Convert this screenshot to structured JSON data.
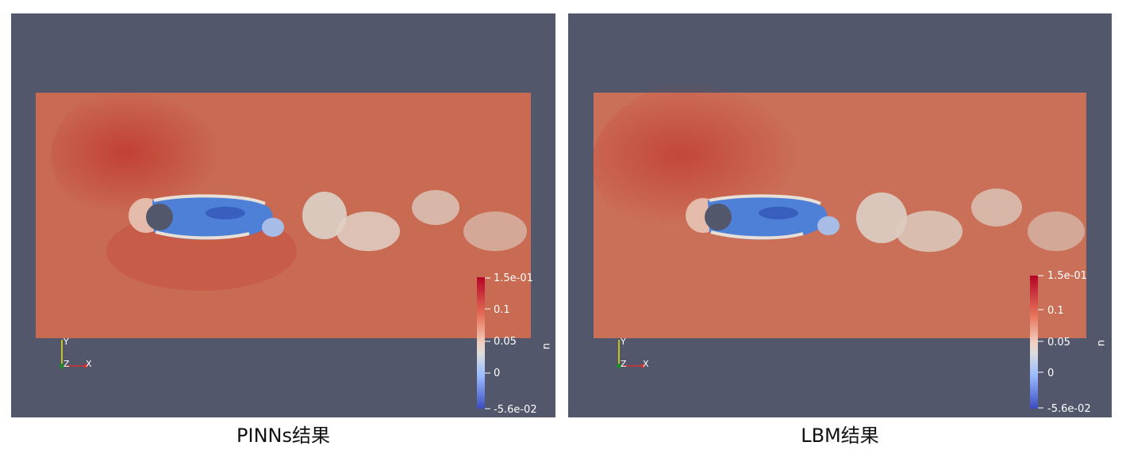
{
  "colors": {
    "viewport_bg": "#52576b",
    "field_base": "#c96a52",
    "field_dark": "#c24a3c",
    "wake_low": "#4d7dd6",
    "wake_light": "#d9dad6",
    "cylinder": "#52576b"
  },
  "panels": [
    {
      "caption": "PINNs结果",
      "colorbar": {
        "title": "u",
        "ticks": [
          "1.5e-01",
          "0.1",
          "0.05",
          "0",
          "-5.6e-02"
        ]
      },
      "axes": {
        "y": "Y",
        "z": "Z",
        "x": "X"
      }
    },
    {
      "caption": "LBM结果",
      "colorbar": {
        "title": "u",
        "ticks": [
          "1.5e-01",
          "0.1",
          "0.05",
          "0",
          "-5.6e-02"
        ]
      },
      "axes": {
        "y": "Y",
        "z": "Z",
        "x": "X"
      }
    }
  ]
}
